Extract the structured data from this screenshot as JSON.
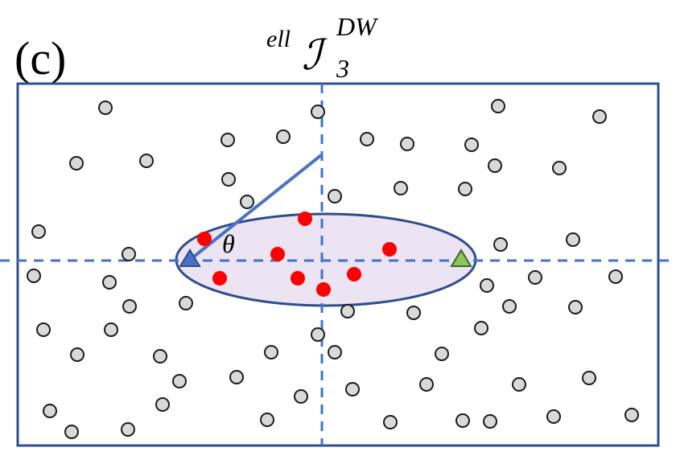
{
  "panel_label": "(c)",
  "title": {
    "prefix": "ell",
    "main": "ℐ",
    "sup": "DW",
    "sub": "3"
  },
  "angle_label": "θ",
  "colors": {
    "frame": "#2f4f8f",
    "axis": "#3f74c9",
    "ellipse_fill": "#ece4f3",
    "ellipse_stroke": "#2e4d8c",
    "point_fill": "#d9d9d9",
    "point_stroke": "#1a1a1a",
    "inside_point": "#ff0000",
    "origin_marker": "#4a72c4",
    "target_marker": "#8fc65a"
  }
}
